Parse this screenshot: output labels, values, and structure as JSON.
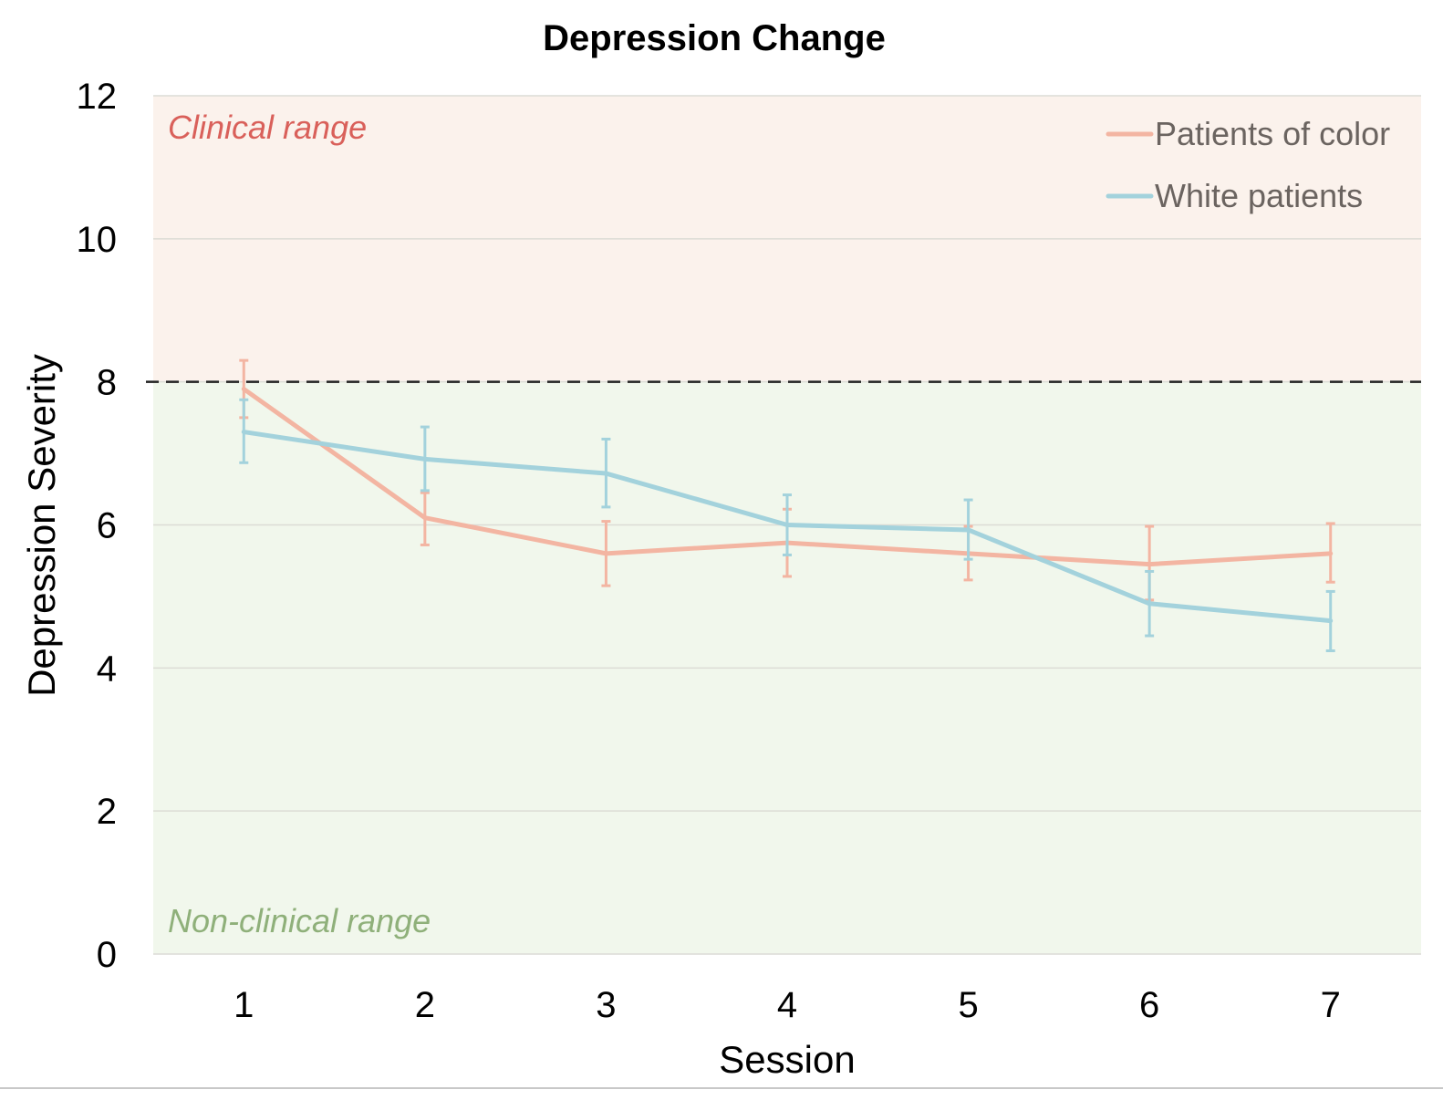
{
  "chart_data": {
    "type": "line",
    "title": "Depression Change",
    "xlabel": "Session",
    "ylabel": "Depression Severity",
    "x": [
      1,
      2,
      3,
      4,
      5,
      6,
      7
    ],
    "xlim": [
      0.5,
      7.5
    ],
    "ylim": [
      0,
      12
    ],
    "yticks": [
      0,
      2,
      4,
      6,
      8,
      10,
      12
    ],
    "threshold": 8,
    "grid": "horizontal",
    "legend_position": "top-right",
    "regions": {
      "clinical_label": "Clinical range",
      "nonclinical_label": "Non-clinical range",
      "clinical_color": "#fbf2ec",
      "nonclinical_color": "#f1f7ec",
      "clinical_text_color": "#d9605a",
      "nonclinical_text_color": "#8fb07a"
    },
    "series": [
      {
        "name": "Patients of color",
        "color": "#f3b5a2",
        "values": [
          7.9,
          6.1,
          5.6,
          5.75,
          5.6,
          5.45,
          5.6
        ],
        "error_low": [
          7.5,
          5.72,
          5.15,
          5.28,
          5.23,
          4.95,
          5.2
        ],
        "error_high": [
          8.3,
          6.45,
          6.05,
          6.22,
          5.98,
          5.98,
          6.02
        ]
      },
      {
        "name": "White patients",
        "color": "#a3d2dc",
        "values": [
          7.3,
          6.92,
          6.72,
          6.0,
          5.93,
          4.9,
          4.66
        ],
        "error_low": [
          6.87,
          6.48,
          6.25,
          5.58,
          5.52,
          4.45,
          4.24
        ],
        "error_high": [
          7.75,
          7.37,
          7.2,
          6.42,
          6.35,
          5.35,
          5.07
        ]
      }
    ]
  }
}
